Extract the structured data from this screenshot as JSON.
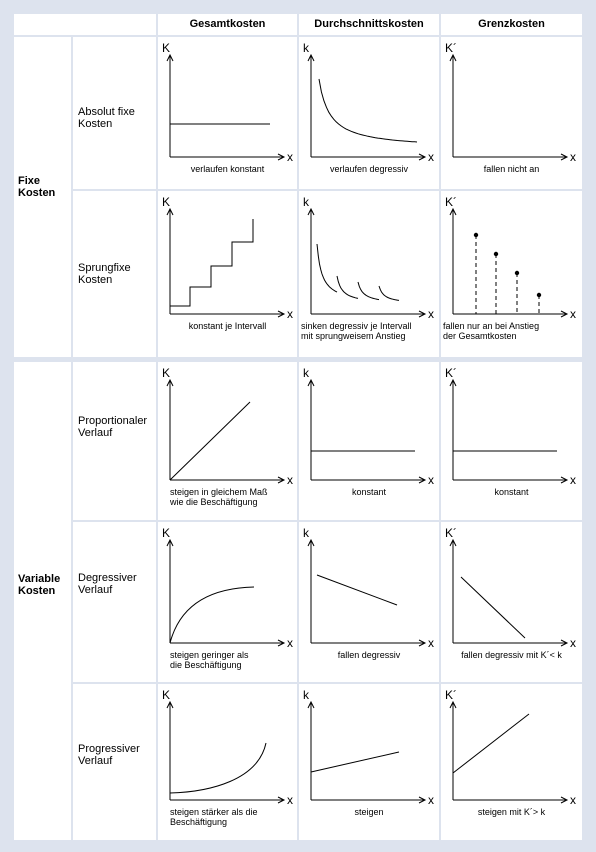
{
  "header": {
    "col1": "Gesamtkosten",
    "col2": "Durchschnittskosten",
    "col3": "Grenzkosten"
  },
  "groups": {
    "fixed": {
      "line1": "Fixe",
      "line2": "Kosten"
    },
    "variable": {
      "line1": "Variable",
      "line2": "Kosten"
    }
  },
  "rows": [
    {
      "label1": "Absolut fixe",
      "label2": "Kosten",
      "caps": [
        [
          "verlaufen konstant"
        ],
        [
          "verlaufen degressiv"
        ],
        [
          "fallen nicht an"
        ]
      ]
    },
    {
      "label1": "Sprungfixe",
      "label2": "Kosten",
      "caps": [
        [
          "konstant je Intervall"
        ],
        [
          "sinken degressiv je Intervall",
          "mit sprungweisem Anstieg"
        ],
        [
          "fallen nur an bei Anstieg",
          "der Gesamtkosten"
        ]
      ]
    },
    {
      "label1": "Proportionaler",
      "label2": "Verlauf",
      "caps": [
        [
          "steigen in gleichem Maß",
          "wie die Beschäftigung"
        ],
        [
          "konstant"
        ],
        [
          "konstant"
        ]
      ]
    },
    {
      "label1": "Degressiver",
      "label2": "Verlauf",
      "caps": [
        [
          "steigen geringer als",
          "die Beschäftigung"
        ],
        [
          "fallen degressiv"
        ],
        [
          "fallen degressiv mit K´< k"
        ]
      ]
    },
    {
      "label1": "Progressiver",
      "label2": "Verlauf",
      "caps": [
        [
          "steigen stärker als die",
          "Beschäftigung"
        ],
        [
          "steigen"
        ],
        [
          "steigen mit K´> k"
        ]
      ]
    }
  ],
  "axes": {
    "total": "K",
    "average": "k",
    "marginal": "K´",
    "x": "x"
  },
  "colors": {
    "background": "#dde3ee",
    "panel": "#ffffff",
    "line": "#000000"
  }
}
